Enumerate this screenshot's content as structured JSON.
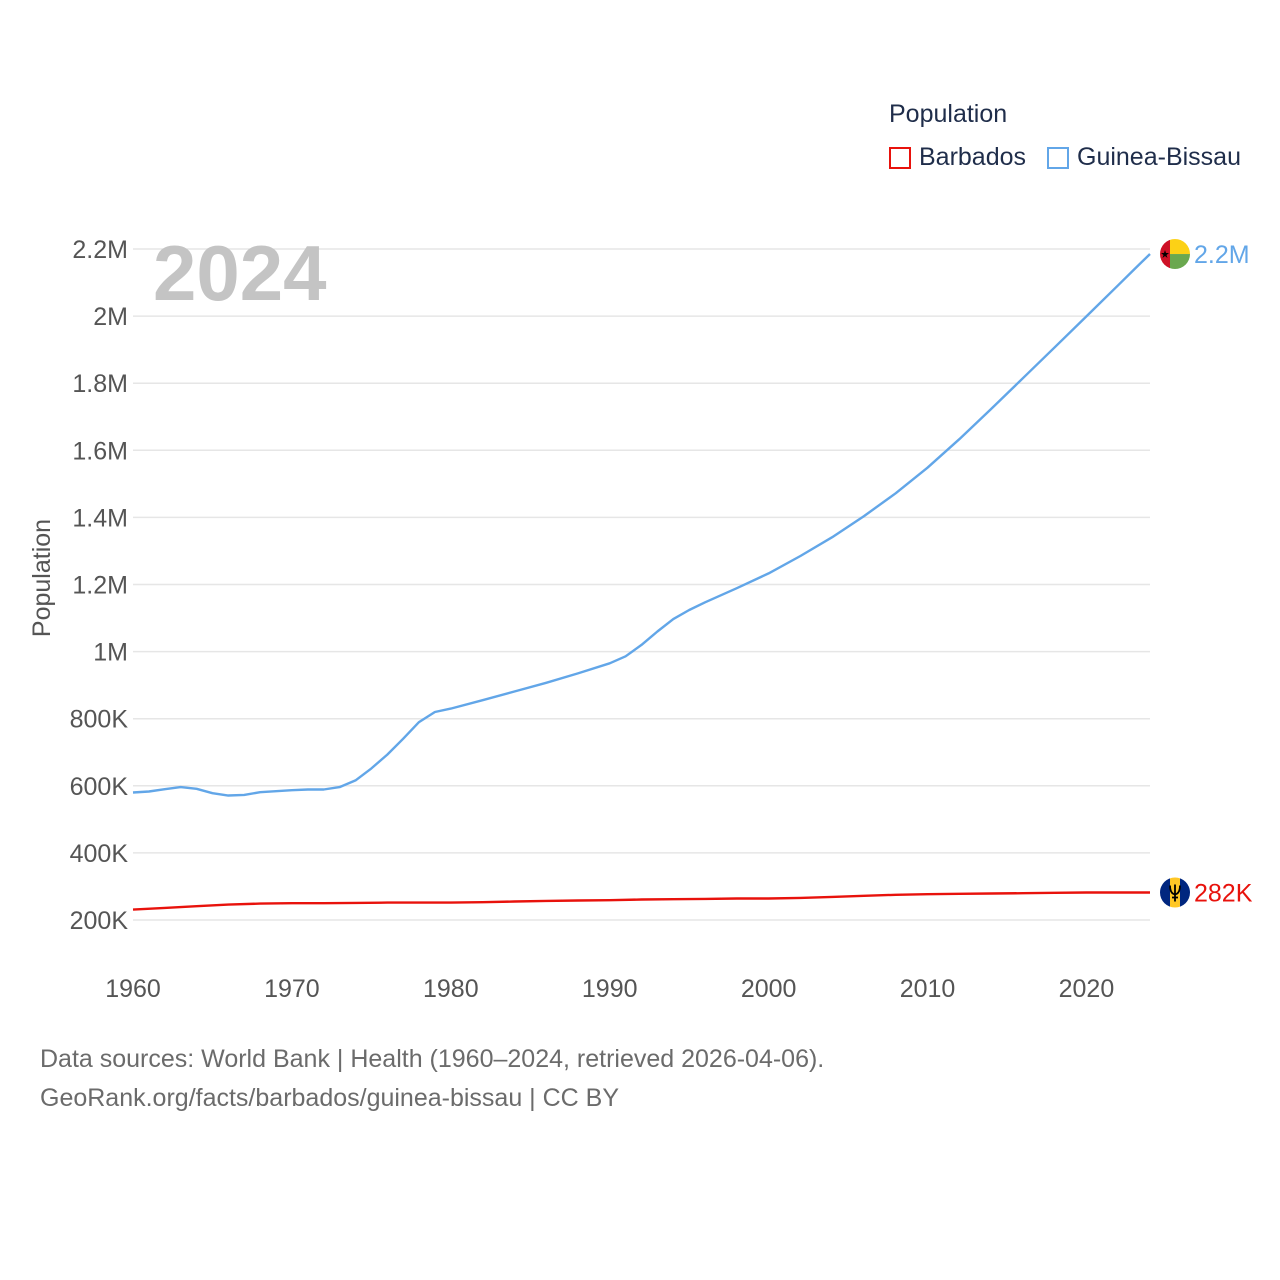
{
  "legend": {
    "title": "Population",
    "items": [
      {
        "label": "Barbados",
        "color": "#e8120c"
      },
      {
        "label": "Guinea-Bissau",
        "color": "#62a6e8"
      }
    ]
  },
  "footer": {
    "line1": "Data sources: World Bank | Health (1960–2024, retrieved 2026-04-06).",
    "line2": "GeoRank.org/facts/barbados/guinea-bissau | CC BY"
  },
  "chart_data": {
    "type": "line",
    "title": "Population",
    "current_year_label": "2024",
    "xlabel": "",
    "ylabel": "Population",
    "xlim": [
      1960,
      2024
    ],
    "ylim": [
      100000,
      2200000
    ],
    "x_ticks": [
      1960,
      1970,
      1980,
      1990,
      2000,
      2010,
      2020
    ],
    "y_ticks": [
      {
        "value": 200000,
        "label": "200K"
      },
      {
        "value": 400000,
        "label": "400K"
      },
      {
        "value": 600000,
        "label": "600K"
      },
      {
        "value": 800000,
        "label": "800K"
      },
      {
        "value": 1000000,
        "label": "1M"
      },
      {
        "value": 1200000,
        "label": "1.2M"
      },
      {
        "value": 1400000,
        "label": "1.4M"
      },
      {
        "value": 1600000,
        "label": "1.6M"
      },
      {
        "value": 1800000,
        "label": "1.8M"
      },
      {
        "value": 2000000,
        "label": "2M"
      },
      {
        "value": 2200000,
        "label": "2.2M"
      }
    ],
    "grid": true,
    "series": [
      {
        "name": "Barbados",
        "color": "#e8120c",
        "end_label": "282K",
        "flag": "barbados-flag",
        "x": [
          1960,
          1962,
          1964,
          1966,
          1968,
          1970,
          1972,
          1974,
          1976,
          1978,
          1980,
          1982,
          1984,
          1986,
          1988,
          1990,
          1992,
          1994,
          1996,
          1998,
          2000,
          2002,
          2004,
          2006,
          2008,
          2010,
          2012,
          2014,
          2016,
          2018,
          2020,
          2022,
          2024
        ],
        "values": [
          231000,
          236000,
          241000,
          246000,
          249000,
          250000,
          250000,
          251000,
          252000,
          252000,
          252000,
          253000,
          255000,
          257000,
          258000,
          259000,
          261000,
          262000,
          263000,
          264000,
          264000,
          266000,
          269000,
          272000,
          275000,
          277000,
          278000,
          279000,
          280000,
          281000,
          282000,
          282000,
          282000
        ]
      },
      {
        "name": "Guinea-Bissau",
        "color": "#62a6e8",
        "end_label": "2.2M",
        "flag": "guinea-bissau-flag",
        "x": [
          1960,
          1961,
          1962,
          1963,
          1964,
          1965,
          1966,
          1967,
          1968,
          1969,
          1970,
          1971,
          1972,
          1973,
          1974,
          1975,
          1976,
          1977,
          1978,
          1979,
          1980,
          1982,
          1984,
          1986,
          1988,
          1990,
          1991,
          1992,
          1993,
          1994,
          1995,
          1996,
          1998,
          2000,
          2002,
          2004,
          2006,
          2008,
          2010,
          2012,
          2014,
          2016,
          2018,
          2020,
          2022,
          2023,
          2024
        ],
        "values": [
          580000,
          583000,
          590000,
          596000,
          591000,
          578000,
          571000,
          573000,
          581000,
          584000,
          587000,
          589000,
          589000,
          596000,
          616000,
          652000,
          693000,
          740000,
          790000,
          820000,
          830000,
          855000,
          881000,
          907000,
          935000,
          965000,
          986000,
          1020000,
          1060000,
          1097000,
          1124000,
          1147000,
          1189000,
          1233000,
          1285000,
          1341000,
          1404000,
          1472000,
          1548000,
          1633000,
          1723000,
          1815000,
          1907000,
          1999000,
          2092000,
          2139000,
          2185000
        ]
      }
    ]
  }
}
